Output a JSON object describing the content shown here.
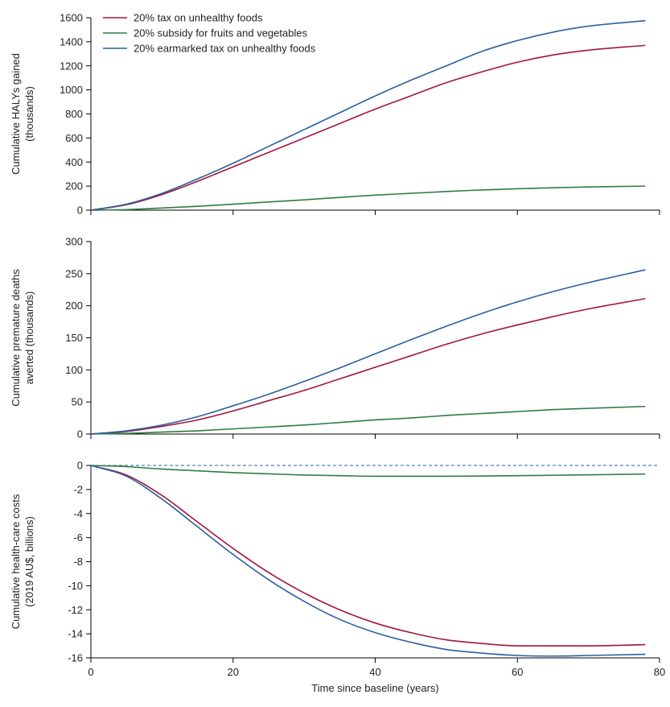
{
  "legend": [
    {
      "label": "20% tax on unhealthy foods",
      "color": "#a3153f"
    },
    {
      "label": "20% subsidy for fruits and vegetables",
      "color": "#2e7d43"
    },
    {
      "label": "20% earmarked tax on unhealthy foods",
      "color": "#2c5f9e"
    }
  ],
  "chart_data": [
    {
      "type": "line",
      "ylabel_lines": [
        "Cumulative HALYs gained",
        "(thousands)"
      ],
      "xlim": [
        0,
        80
      ],
      "ylim": [
        0,
        1600
      ],
      "yticks": [
        0,
        200,
        400,
        600,
        800,
        1000,
        1200,
        1400,
        1600
      ],
      "xticks": [
        0,
        20,
        40,
        60,
        80
      ],
      "series": [
        {
          "name": "20% tax on unhealthy foods",
          "color": "#a3153f",
          "x": [
            0,
            5,
            10,
            15,
            20,
            25,
            30,
            35,
            40,
            45,
            50,
            55,
            60,
            65,
            70,
            78
          ],
          "y": [
            0,
            45,
            130,
            240,
            360,
            480,
            600,
            720,
            840,
            950,
            1060,
            1150,
            1230,
            1290,
            1330,
            1370
          ]
        },
        {
          "name": "20% subsidy for fruits and vegetables",
          "color": "#2e7d43",
          "x": [
            0,
            5,
            10,
            15,
            20,
            25,
            30,
            35,
            40,
            45,
            50,
            55,
            60,
            65,
            70,
            78
          ],
          "y": [
            0,
            5,
            18,
            32,
            50,
            68,
            86,
            106,
            125,
            140,
            155,
            168,
            178,
            186,
            193,
            200
          ]
        },
        {
          "name": "20% earmarked tax on unhealthy foods",
          "color": "#2c5f9e",
          "x": [
            0,
            5,
            10,
            15,
            20,
            25,
            30,
            35,
            40,
            45,
            50,
            55,
            60,
            65,
            70,
            78
          ],
          "y": [
            0,
            50,
            140,
            260,
            390,
            530,
            670,
            810,
            950,
            1080,
            1200,
            1320,
            1410,
            1480,
            1530,
            1575
          ]
        }
      ]
    },
    {
      "type": "line",
      "ylabel_lines": [
        "Cumulative premature deaths",
        "averted (thousands)"
      ],
      "xlim": [
        0,
        80
      ],
      "ylim": [
        0,
        300
      ],
      "yticks": [
        0,
        50,
        100,
        150,
        200,
        250,
        300
      ],
      "xticks": [
        0,
        20,
        40,
        60,
        80
      ],
      "series": [
        {
          "name": "20% tax on unhealthy foods",
          "color": "#a3153f",
          "x": [
            0,
            5,
            10,
            15,
            20,
            25,
            30,
            35,
            40,
            45,
            50,
            55,
            60,
            65,
            70,
            78
          ],
          "y": [
            0,
            4,
            12,
            22,
            36,
            52,
            68,
            86,
            104,
            122,
            140,
            156,
            170,
            183,
            195,
            211
          ]
        },
        {
          "name": "20% subsidy for fruits and vegetables",
          "color": "#2e7d43",
          "x": [
            0,
            5,
            10,
            15,
            20,
            25,
            30,
            35,
            40,
            45,
            50,
            55,
            60,
            65,
            70,
            78
          ],
          "y": [
            0,
            1,
            3,
            5,
            8,
            11,
            14,
            18,
            22,
            25,
            29,
            32,
            35,
            38,
            40,
            43
          ]
        },
        {
          "name": "20% earmarked tax on unhealthy foods",
          "color": "#2c5f9e",
          "x": [
            0,
            5,
            10,
            15,
            20,
            25,
            30,
            35,
            40,
            45,
            50,
            55,
            60,
            65,
            70,
            78
          ],
          "y": [
            0,
            5,
            14,
            27,
            44,
            62,
            82,
            103,
            125,
            147,
            168,
            188,
            206,
            222,
            236,
            256
          ]
        }
      ]
    },
    {
      "type": "line",
      "ylabel_lines": [
        "Cumulative health-care costs",
        "(2019 AU$, billions)"
      ],
      "xlabel": "Time since baseline (years)",
      "xlim": [
        0,
        80
      ],
      "ylim": [
        -16,
        0
      ],
      "yticks": [
        0,
        -2,
        -4,
        -6,
        -8,
        -10,
        -12,
        -14,
        -16
      ],
      "xticks": [
        0,
        20,
        40,
        60,
        80
      ],
      "reference_line_y": 0,
      "series": [
        {
          "name": "20% tax on unhealthy foods",
          "color": "#a3153f",
          "x": [
            0,
            5,
            10,
            15,
            20,
            25,
            30,
            35,
            40,
            45,
            50,
            55,
            60,
            65,
            70,
            78
          ],
          "y": [
            0,
            -0.8,
            -2.5,
            -4.7,
            -6.9,
            -8.9,
            -10.6,
            -12.0,
            -13.1,
            -13.9,
            -14.5,
            -14.8,
            -15.0,
            -15.0,
            -15.0,
            -14.9
          ]
        },
        {
          "name": "20% subsidy for fruits and vegetables",
          "color": "#2e7d43",
          "x": [
            0,
            5,
            10,
            15,
            20,
            25,
            30,
            35,
            40,
            45,
            50,
            55,
            60,
            65,
            70,
            78
          ],
          "y": [
            0,
            -0.1,
            -0.3,
            -0.45,
            -0.6,
            -0.7,
            -0.8,
            -0.85,
            -0.9,
            -0.9,
            -0.9,
            -0.88,
            -0.85,
            -0.82,
            -0.78,
            -0.72
          ]
        },
        {
          "name": "20% earmarked tax on unhealthy foods",
          "color": "#2c5f9e",
          "x": [
            0,
            5,
            10,
            15,
            20,
            25,
            30,
            35,
            40,
            45,
            50,
            55,
            60,
            65,
            70,
            78
          ],
          "y": [
            0,
            -0.9,
            -2.8,
            -5.1,
            -7.4,
            -9.5,
            -11.3,
            -12.8,
            -13.9,
            -14.7,
            -15.3,
            -15.6,
            -15.8,
            -15.85,
            -15.8,
            -15.7
          ]
        }
      ]
    }
  ]
}
